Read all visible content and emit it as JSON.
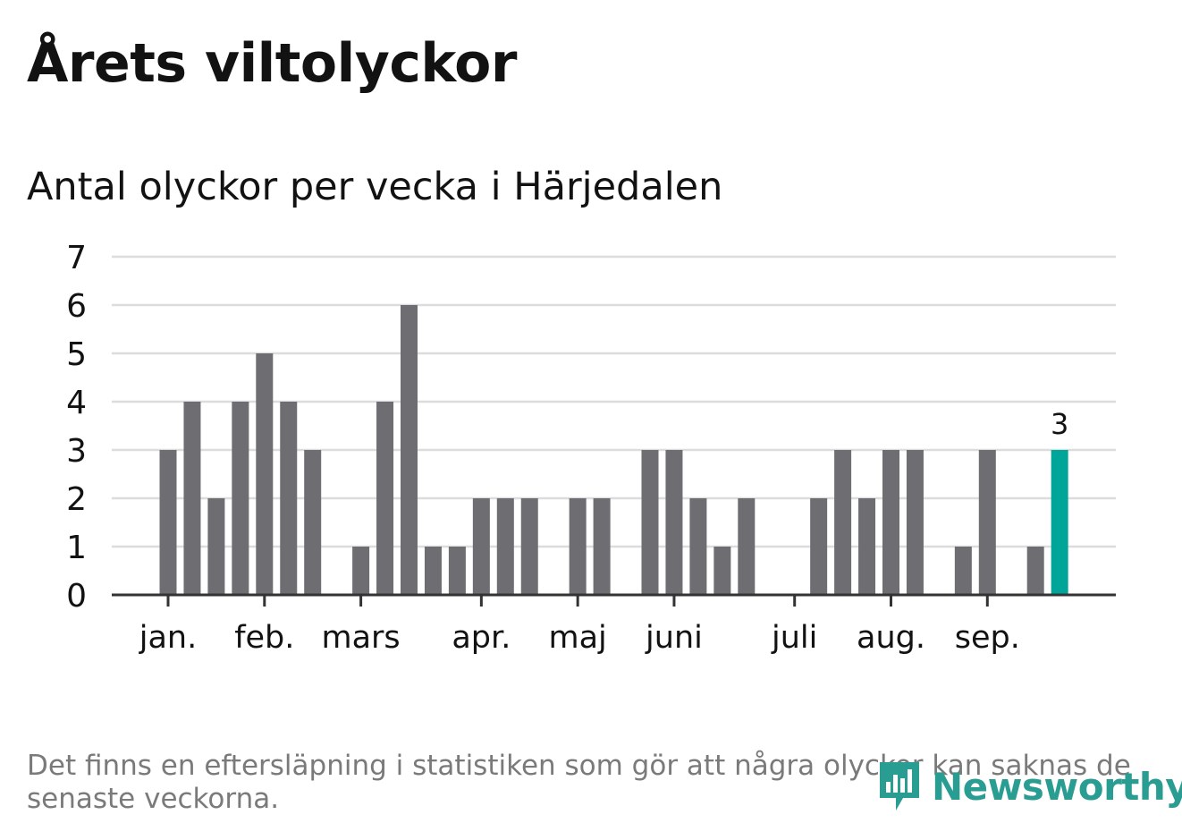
{
  "title": "Årets viltolyckor",
  "subtitle": "Antal olyckor per vecka i Härjedalen",
  "footnote": "Det finns en eftersläpning i statistiken som gör att några olyckor kan saknas de senaste veckorna.",
  "logo_text": "Newsworthy",
  "colors": {
    "bar": "#6e6d72",
    "highlight": "#00a599",
    "grid": "#dcdcdc",
    "axis": "#333333",
    "text": "#121212",
    "footnote": "#7a7a7a",
    "logo": "#2a9d92"
  },
  "chart_data": {
    "type": "bar",
    "title": "Antal olyckor per vecka i Härjedalen",
    "xlabel": "",
    "ylabel": "",
    "ylim": [
      0,
      7
    ],
    "yticks": [
      0,
      1,
      2,
      3,
      4,
      5,
      6,
      7
    ],
    "grid": true,
    "month_labels": [
      {
        "label": "jan.",
        "week": 1
      },
      {
        "label": "feb.",
        "week": 5
      },
      {
        "label": "mars",
        "week": 9
      },
      {
        "label": "apr.",
        "week": 14
      },
      {
        "label": "maj",
        "week": 18
      },
      {
        "label": "juni",
        "week": 22
      },
      {
        "label": "juli",
        "week": 27
      },
      {
        "label": "aug.",
        "week": 31
      },
      {
        "label": "sep.",
        "week": 35
      }
    ],
    "weeks": [
      1,
      2,
      3,
      4,
      5,
      6,
      7,
      8,
      9,
      10,
      11,
      12,
      13,
      14,
      15,
      16,
      17,
      18,
      19,
      20,
      21,
      22,
      23,
      24,
      25,
      26,
      27,
      28,
      29,
      30,
      31,
      32,
      33,
      34,
      35,
      36,
      37,
      38
    ],
    "values": [
      3,
      4,
      2,
      4,
      5,
      4,
      3,
      0,
      1,
      4,
      6,
      1,
      1,
      2,
      2,
      2,
      0,
      2,
      2,
      0,
      3,
      3,
      2,
      1,
      2,
      0,
      0,
      2,
      3,
      2,
      3,
      3,
      0,
      1,
      3,
      0,
      1,
      3
    ],
    "highlight_index": 37,
    "highlight_label": "3"
  }
}
